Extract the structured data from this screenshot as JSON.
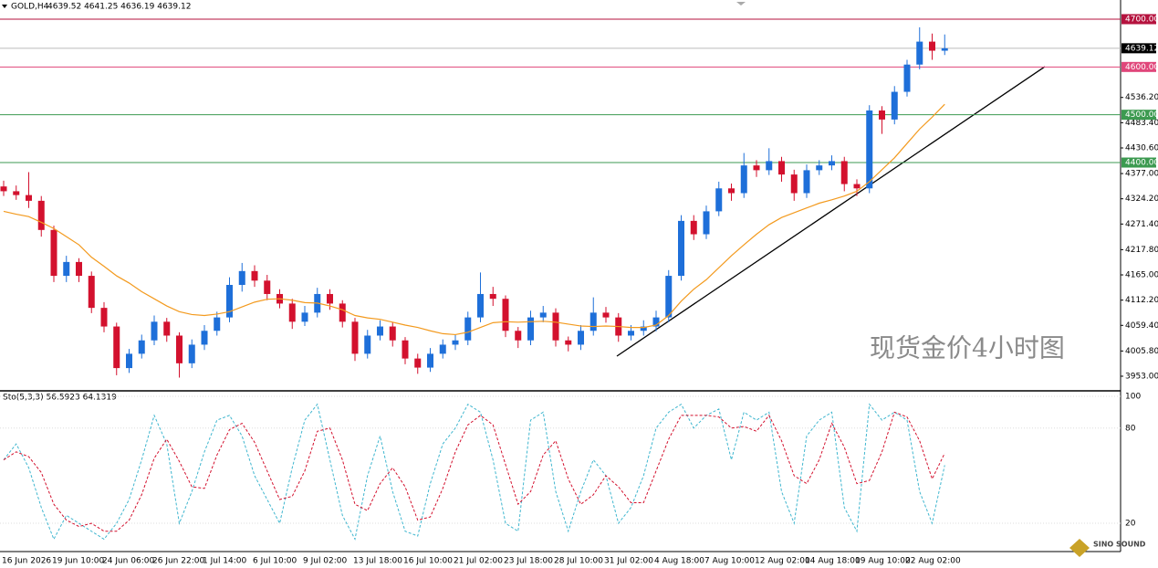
{
  "header": {
    "symbol": "GOLD,H4",
    "ohlc": "4639.52 4641.25 4636.19 4639.12"
  },
  "watermark": "现货金价4小时图",
  "logo_text": "SINO SOUND",
  "chart_data": [
    {
      "type": "candlestick",
      "up_color": "#1e6fd9",
      "down_color": "#d3112e",
      "ylim": [
        3922.4,
        4740.1
      ],
      "yticks": [
        {
          "value": 4536.2,
          "label": "4536.20"
        },
        {
          "value": 4483.4,
          "label": "4483.40"
        },
        {
          "value": 4430.6,
          "label": "4430.60"
        },
        {
          "value": 4377,
          "label": "4377.00"
        },
        {
          "value": 4324.2,
          "label": "4324.20"
        },
        {
          "value": 4271.4,
          "label": "4271.40"
        },
        {
          "value": 4217.8,
          "label": "4217.80"
        },
        {
          "value": 4165,
          "label": "4165.00"
        },
        {
          "value": 4112.2,
          "label": "4112.20"
        },
        {
          "value": 4059.4,
          "label": "4059.40"
        },
        {
          "value": 4005.8,
          "label": "4005.80"
        },
        {
          "value": 3953,
          "label": "3953.00"
        }
      ],
      "levels": [
        {
          "value": 4700,
          "label": "4700.00",
          "color": "#b5123e"
        },
        {
          "value": 4600,
          "label": "4600.00",
          "color": "#e0467a"
        },
        {
          "value": 4500,
          "label": "4500.00",
          "color": "#3c9a50"
        },
        {
          "value": 4400,
          "label": "4400.00",
          "color": "#3c9a50"
        }
      ],
      "last_price": 4639.12,
      "categories": [
        "16 Jun 2026",
        null,
        null,
        null,
        "19 Jun 10:00",
        null,
        null,
        null,
        "24 Jun 06:00",
        null,
        null,
        null,
        "26 Jun 22:00",
        null,
        null,
        null,
        "1 Jul 14:00",
        null,
        null,
        null,
        "6 Jul 10:00",
        null,
        null,
        null,
        "9 Jul 02:00",
        null,
        null,
        null,
        "13 Jul 18:00",
        null,
        null,
        null,
        "16 Jul 10:00",
        null,
        null,
        null,
        "21 Jul 02:00",
        null,
        null,
        null,
        "23 Jul 18:00",
        null,
        null,
        null,
        "28 Jul 10:00",
        null,
        null,
        null,
        "31 Jul 02:00",
        null,
        null,
        null,
        "4 Aug 18:00",
        null,
        null,
        null,
        "7 Aug 10:00",
        null,
        null,
        null,
        "12 Aug 02:00",
        null,
        null,
        null,
        "14 Aug 18:00",
        null,
        null,
        null,
        "19 Aug 10:00",
        null,
        null,
        null,
        "22 Aug 02:00",
        null,
        null,
        null
      ],
      "ohlc": [
        [
          4350,
          4362,
          4330,
          4340
        ],
        [
          4340,
          4352,
          4322,
          4332
        ],
        [
          4332,
          4380,
          4305,
          4320
        ],
        [
          4320,
          4330,
          4245,
          4259
        ],
        [
          4259,
          4268,
          4150,
          4163
        ],
        [
          4163,
          4205,
          4150,
          4192
        ],
        [
          4192,
          4200,
          4150,
          4163
        ],
        [
          4163,
          4172,
          4085,
          4096
        ],
        [
          4096,
          4108,
          4045,
          4057
        ],
        [
          4057,
          4065,
          3955,
          3970
        ],
        [
          3970,
          4010,
          3960,
          4000
        ],
        [
          4000,
          4040,
          3990,
          4028
        ],
        [
          4028,
          4080,
          4018,
          4067
        ],
        [
          4067,
          4075,
          4025,
          4038
        ],
        [
          4038,
          4045,
          3950,
          3980
        ],
        [
          3980,
          4030,
          3970,
          4019
        ],
        [
          4019,
          4060,
          4008,
          4048
        ],
        [
          4048,
          4088,
          4038,
          4076
        ],
        [
          4076,
          4160,
          4066,
          4144
        ],
        [
          4144,
          4190,
          4130,
          4173
        ],
        [
          4173,
          4185,
          4140,
          4153
        ],
        [
          4153,
          4165,
          4112,
          4125
        ],
        [
          4125,
          4135,
          4095,
          4105
        ],
        [
          4105,
          4115,
          4052,
          4067
        ],
        [
          4067,
          4100,
          4058,
          4086
        ],
        [
          4086,
          4138,
          4076,
          4125
        ],
        [
          4125,
          4135,
          4092,
          4105
        ],
        [
          4105,
          4112,
          4055,
          4067
        ],
        [
          4067,
          4075,
          3985,
          4000
        ],
        [
          4000,
          4050,
          3990,
          4038
        ],
        [
          4038,
          4070,
          4028,
          4057
        ],
        [
          4057,
          4066,
          4015,
          4028
        ],
        [
          4028,
          4035,
          3978,
          3990
        ],
        [
          3990,
          4000,
          3958,
          3971
        ],
        [
          3971,
          4012,
          3962,
          4000
        ],
        [
          4000,
          4030,
          3990,
          4019
        ],
        [
          4019,
          4040,
          4008,
          4028
        ],
        [
          4028,
          4088,
          4018,
          4076
        ],
        [
          4076,
          4170,
          4066,
          4125
        ],
        [
          4125,
          4140,
          4100,
          4115
        ],
        [
          4115,
          4122,
          4035,
          4048
        ],
        [
          4048,
          4056,
          4012,
          4028
        ],
        [
          4028,
          4090,
          4018,
          4076
        ],
        [
          4076,
          4100,
          4066,
          4086
        ],
        [
          4086,
          4095,
          4015,
          4028
        ],
        [
          4028,
          4036,
          4005,
          4019
        ],
        [
          4019,
          4060,
          4008,
          4048
        ],
        [
          4048,
          4118,
          4038,
          4086
        ],
        [
          4086,
          4098,
          4065,
          4076
        ],
        [
          4076,
          4085,
          4025,
          4038
        ],
        [
          4038,
          4060,
          4028,
          4048
        ],
        [
          4048,
          4070,
          4038,
          4057
        ],
        [
          4057,
          4090,
          4047,
          4076
        ],
        [
          4076,
          4175,
          4066,
          4163
        ],
        [
          4163,
          4290,
          4153,
          4278
        ],
        [
          4278,
          4290,
          4238,
          4250
        ],
        [
          4250,
          4310,
          4240,
          4298
        ],
        [
          4298,
          4360,
          4288,
          4346
        ],
        [
          4346,
          4356,
          4320,
          4336
        ],
        [
          4336,
          4420,
          4326,
          4394
        ],
        [
          4394,
          4405,
          4370,
          4384
        ],
        [
          4384,
          4430,
          4374,
          4403
        ],
        [
          4403,
          4412,
          4360,
          4375
        ],
        [
          4375,
          4385,
          4320,
          4336
        ],
        [
          4336,
          4396,
          4326,
          4384
        ],
        [
          4384,
          4405,
          4374,
          4394
        ],
        [
          4394,
          4415,
          4384,
          4403
        ],
        [
          4403,
          4412,
          4340,
          4355
        ],
        [
          4355,
          4365,
          4330,
          4346
        ],
        [
          4346,
          4520,
          4336,
          4509
        ],
        [
          4509,
          4518,
          4460,
          4490
        ],
        [
          4490,
          4560,
          4480,
          4548
        ],
        [
          4548,
          4615,
          4538,
          4605
        ],
        [
          4605,
          4683,
          4595,
          4653
        ],
        [
          4653,
          4670,
          4615,
          4634
        ],
        [
          4634,
          4668,
          4625,
          4639.12
        ]
      ],
      "ma": {
        "color": "#f39a1e",
        "values": [
          4298,
          4292,
          4287,
          4275,
          4262,
          4245,
          4228,
          4202,
          4183,
          4163,
          4148,
          4130,
          4115,
          4100,
          4088,
          4082,
          4080,
          4083,
          4088,
          4098,
          4108,
          4114,
          4115,
          4112,
          4107,
          4106,
          4100,
          4092,
          4080,
          4075,
          4072,
          4066,
          4060,
          4055,
          4048,
          4042,
          4040,
          4045,
          4055,
          4065,
          4067,
          4066,
          4067,
          4068,
          4066,
          4062,
          4058,
          4057,
          4058,
          4057,
          4055,
          4055,
          4060,
          4080,
          4110,
          4135,
          4155,
          4180,
          4205,
          4228,
          4250,
          4270,
          4285,
          4295,
          4305,
          4315,
          4322,
          4330,
          4340,
          4360,
          4385,
          4410,
          4440,
          4470,
          4495,
          4522
        ]
      }
    },
    {
      "type": "line",
      "title": "Sto(5,3,3) 56.5923 64.1319",
      "ylim": [
        2.2,
        100
      ],
      "yticks": [
        100,
        80,
        20
      ],
      "grid": true,
      "series": [
        {
          "color": "#3fb6cf",
          "values": [
            60,
            70,
            55,
            30,
            10,
            25,
            20,
            15,
            10,
            20,
            35,
            60,
            88,
            70,
            20,
            40,
            65,
            85,
            88,
            75,
            50,
            35,
            20,
            55,
            85,
            95,
            60,
            25,
            10,
            50,
            75,
            40,
            15,
            12,
            45,
            70,
            80,
            95,
            90,
            60,
            20,
            15,
            85,
            90,
            40,
            15,
            40,
            60,
            50,
            20,
            30,
            50,
            80,
            90,
            95,
            80,
            88,
            92,
            60,
            90,
            85,
            90,
            40,
            20,
            75,
            85,
            90,
            30,
            15,
            95,
            85,
            90,
            85,
            40,
            20,
            56.5923
          ]
        },
        {
          "color": "#d3112e",
          "values": [
            60,
            65,
            62,
            52,
            32,
            22,
            18,
            20,
            15,
            15,
            22,
            38,
            61,
            73,
            59,
            43,
            42,
            63,
            79,
            83,
            71,
            53,
            35,
            37,
            53,
            78,
            80,
            60,
            32,
            28,
            45,
            55,
            43,
            22,
            24,
            42,
            65,
            82,
            88,
            82,
            57,
            32,
            40,
            63,
            72,
            48,
            32,
            38,
            50,
            43,
            33,
            33,
            53,
            73,
            88,
            88,
            88,
            87,
            80,
            81,
            78,
            88,
            72,
            50,
            45,
            60,
            83,
            68,
            45,
            47,
            65,
            90,
            87,
            72,
            48,
            64.1319
          ]
        }
      ]
    }
  ]
}
